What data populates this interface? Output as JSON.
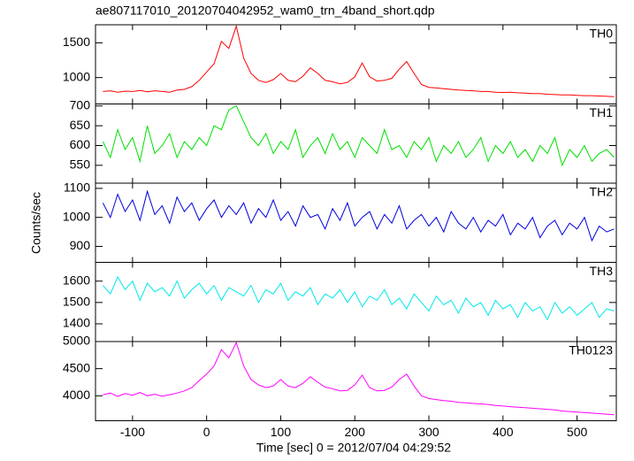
{
  "chart_data": {
    "type": "line",
    "title": "ae807117010_20120704042952_wam0_trn_4band_short.qdp",
    "x_label": "Time [sec] 0 = 2012/07/04 04:29:52",
    "y_label": "Counts/sec",
    "xlim": [
      -150,
      553
    ],
    "xticks": [
      -100,
      0,
      100,
      200,
      300,
      400,
      500
    ],
    "x": [
      -140,
      -130,
      -120,
      -110,
      -100,
      -90,
      -80,
      -70,
      -60,
      -50,
      -40,
      -30,
      -20,
      -10,
      0,
      10,
      20,
      30,
      40,
      50,
      60,
      70,
      80,
      90,
      100,
      110,
      120,
      130,
      140,
      150,
      160,
      170,
      180,
      190,
      200,
      210,
      220,
      230,
      240,
      250,
      260,
      270,
      280,
      290,
      300,
      310,
      320,
      330,
      340,
      350,
      360,
      370,
      380,
      390,
      400,
      410,
      420,
      430,
      440,
      450,
      460,
      470,
      480,
      490,
      500,
      510,
      520,
      530,
      540,
      550
    ],
    "series": [
      {
        "name": "TH0",
        "color": "#ff0000",
        "ylim": [
          620,
          1760
        ],
        "yticks": [
          1000,
          1500
        ],
        "values": [
          800,
          810,
          790,
          805,
          800,
          815,
          795,
          810,
          800,
          790,
          820,
          830,
          870,
          960,
          1080,
          1200,
          1520,
          1420,
          1740,
          1280,
          1060,
          960,
          930,
          970,
          1060,
          960,
          940,
          1020,
          1140,
          1060,
          960,
          940,
          910,
          930,
          1010,
          1210,
          1010,
          950,
          960,
          990,
          1120,
          1230,
          1060,
          900,
          860,
          850,
          840,
          830,
          820,
          815,
          810,
          800,
          800,
          790,
          785,
          790,
          780,
          775,
          770,
          770,
          760,
          755,
          750,
          750,
          745,
          740,
          740,
          735,
          730,
          725
        ]
      },
      {
        "name": "TH1",
        "color": "#00e000",
        "ylim": [
          505,
          705
        ],
        "yticks": [
          550,
          600,
          650,
          700
        ],
        "values": [
          610,
          570,
          640,
          590,
          620,
          560,
          650,
          580,
          600,
          630,
          570,
          610,
          590,
          620,
          600,
          650,
          640,
          690,
          700,
          660,
          620,
          600,
          630,
          580,
          610,
          590,
          640,
          570,
          600,
          620,
          580,
          630,
          590,
          610,
          570,
          620,
          600,
          580,
          640,
          590,
          600,
          570,
          610,
          590,
          620,
          560,
          600,
          580,
          610,
          570,
          590,
          620,
          560,
          600,
          580,
          610,
          570,
          590,
          560,
          600,
          580,
          620,
          550,
          590,
          570,
          600,
          560,
          580,
          590,
          570
        ]
      },
      {
        "name": "TH2",
        "color": "#0000e0",
        "ylim": [
          845,
          1118
        ],
        "yticks": [
          900,
          1000,
          1100
        ],
        "values": [
          1050,
          1000,
          1080,
          1020,
          1060,
          990,
          1090,
          1010,
          1040,
          980,
          1070,
          1020,
          1050,
          990,
          1030,
          1060,
          1000,
          1040,
          1010,
          1050,
          980,
          1030,
          1000,
          1060,
          990,
          1020,
          970,
          1040,
          1000,
          1010,
          960,
          1030,
          990,
          1050,
          970,
          1000,
          1020,
          960,
          1010,
          980,
          1040,
          960,
          990,
          1010,
          970,
          1000,
          950,
          1020,
          980,
          960,
          1000,
          950,
          990,
          970,
          1010,
          940,
          980,
          960,
          1000,
          930,
          970,
          990,
          940,
          980,
          960,
          1000,
          920,
          970,
          950,
          960
        ]
      },
      {
        "name": "TH3",
        "color": "#00e8e8",
        "ylim": [
          1317,
          1688
        ],
        "yticks": [
          1400,
          1500,
          1600
        ],
        "values": [
          1580,
          1540,
          1620,
          1560,
          1600,
          1510,
          1590,
          1550,
          1570,
          1530,
          1600,
          1520,
          1560,
          1590,
          1540,
          1580,
          1510,
          1570,
          1550,
          1530,
          1580,
          1500,
          1560,
          1540,
          1590,
          1510,
          1550,
          1530,
          1570,
          1490,
          1540,
          1520,
          1560,
          1500,
          1550,
          1480,
          1530,
          1510,
          1560,
          1490,
          1520,
          1470,
          1540,
          1500,
          1460,
          1530,
          1490,
          1510,
          1450,
          1520,
          1480,
          1500,
          1440,
          1510,
          1470,
          1490,
          1430,
          1500,
          1460,
          1480,
          1420,
          1500,
          1450,
          1480,
          1440,
          1470,
          1500,
          1430,
          1470,
          1460
        ]
      },
      {
        "name": "TH0123",
        "color": "#ff00ff",
        "ylim": [
          3540,
          5000
        ],
        "yticks": [
          4000,
          4500,
          5000
        ],
        "values": [
          4020,
          4050,
          3990,
          4040,
          4010,
          4060,
          4000,
          4030,
          3990,
          4020,
          4050,
          4090,
          4150,
          4280,
          4400,
          4550,
          4850,
          4700,
          4980,
          4550,
          4300,
          4200,
          4150,
          4180,
          4300,
          4180,
          4150,
          4230,
          4350,
          4250,
          4160,
          4130,
          4090,
          4100,
          4200,
          4380,
          4150,
          4090,
          4100,
          4160,
          4300,
          4400,
          4180,
          4000,
          3950,
          3930,
          3910,
          3900,
          3880,
          3870,
          3860,
          3850,
          3840,
          3820,
          3810,
          3800,
          3790,
          3780,
          3770,
          3760,
          3750,
          3740,
          3720,
          3710,
          3700,
          3690,
          3680,
          3670,
          3660,
          3650
        ]
      }
    ]
  }
}
